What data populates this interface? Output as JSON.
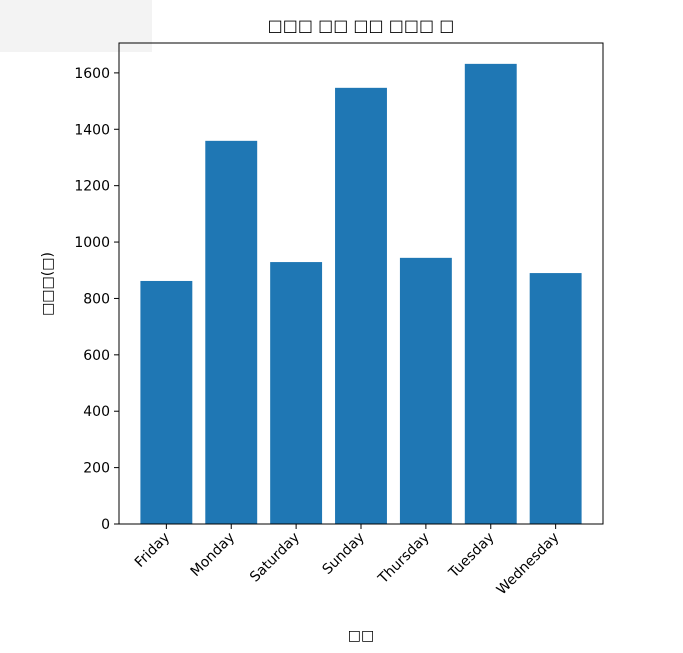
{
  "chart_data": {
    "type": "bar",
    "title": "□□□ □□ □□ □□□ □",
    "x_label": "□□",
    "y_label": "□□□(□)",
    "categories": [
      "Friday",
      "Monday",
      "Saturday",
      "Sunday",
      "Thursday",
      "Tuesday",
      "Wednesday"
    ],
    "values": [
      862,
      1359,
      929,
      1547,
      944,
      1632,
      890
    ],
    "color": "#1f77b4",
    "ylim": [
      0,
      1706
    ],
    "yticks": [
      0,
      200,
      400,
      600,
      800,
      1000,
      1200,
      1400,
      1600
    ],
    "grid": false
  }
}
